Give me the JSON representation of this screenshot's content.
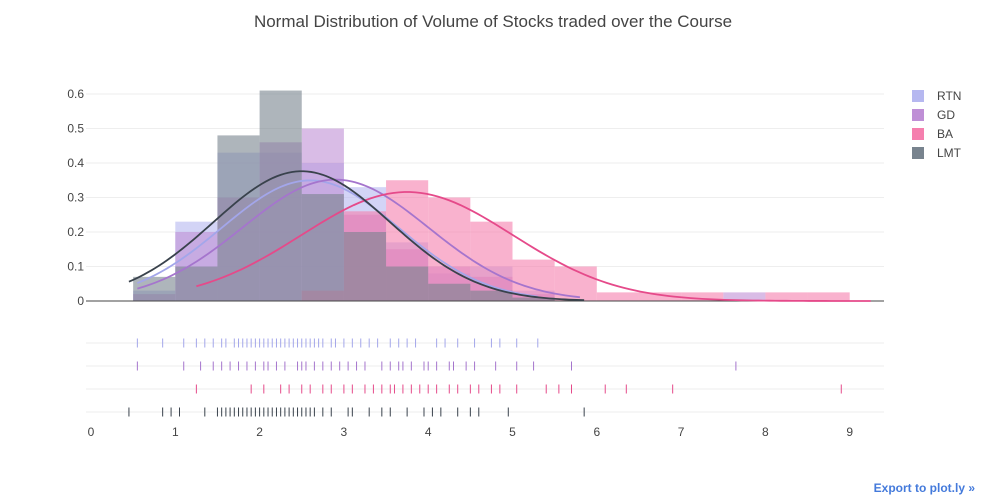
{
  "chart_data": {
    "type": "histogram",
    "title": "Normal Distribution of Volume of Stocks traded over the Course",
    "xlabel": "",
    "ylabel": "",
    "xlim": [
      0,
      9.5
    ],
    "ylim": [
      0,
      0.6
    ],
    "x_ticks": [
      0,
      1,
      2,
      3,
      4,
      5,
      6,
      7,
      8,
      9
    ],
    "y_ticks": [
      0,
      0.1,
      0.2,
      0.3,
      0.4,
      0.5,
      0.6
    ],
    "y_tick_labels": [
      "0",
      "0.1",
      "0.2",
      "0.3",
      "0.4",
      "0.5",
      "0.6"
    ],
    "grid": true,
    "legend_position": "right",
    "series": [
      {
        "name": "RTN",
        "color": "#b6b8f0",
        "bins": [
          {
            "x0": 0.5,
            "x1": 1.0,
            "y": 0.03
          },
          {
            "x0": 1.0,
            "x1": 1.5,
            "y": 0.23
          },
          {
            "x0": 1.5,
            "x1": 2.0,
            "y": 0.43
          },
          {
            "x0": 2.0,
            "x1": 2.5,
            "y": 0.43
          },
          {
            "x0": 2.5,
            "x1": 3.0,
            "y": 0.4
          },
          {
            "x0": 3.0,
            "x1": 3.5,
            "y": 0.33
          },
          {
            "x0": 3.5,
            "x1": 4.0,
            "y": 0.17
          },
          {
            "x0": 4.0,
            "x1": 4.5,
            "y": 0.08
          },
          {
            "x0": 4.5,
            "x1": 5.0,
            "y": 0.1
          },
          {
            "x0": 5.0,
            "x1": 5.5,
            "y": 0.03
          }
        ],
        "curve": {
          "mean": 2.6,
          "sd": 1.05,
          "scale": 0.92,
          "x_range": [
            0.55,
            5.3
          ]
        },
        "rug": [
          0.55,
          0.85,
          1.1,
          1.25,
          1.35,
          1.45,
          1.55,
          1.6,
          1.7,
          1.75,
          1.8,
          1.85,
          1.9,
          1.95,
          2.0,
          2.05,
          2.1,
          2.15,
          2.2,
          2.25,
          2.3,
          2.35,
          2.4,
          2.45,
          2.5,
          2.55,
          2.6,
          2.65,
          2.7,
          2.75,
          2.85,
          2.9,
          3.0,
          3.1,
          3.2,
          3.3,
          3.4,
          3.55,
          3.65,
          3.75,
          3.85,
          4.1,
          4.2,
          4.35,
          4.55,
          4.75,
          4.85,
          5.05,
          5.3
        ]
      },
      {
        "name": "GD",
        "color": "#bf8fd6",
        "bins": [
          {
            "x0": 0.5,
            "x1": 1.0,
            "y": 0.02
          },
          {
            "x0": 1.0,
            "x1": 1.5,
            "y": 0.2
          },
          {
            "x0": 1.5,
            "x1": 2.0,
            "y": 0.3
          },
          {
            "x0": 2.0,
            "x1": 2.5,
            "y": 0.46
          },
          {
            "x0": 2.5,
            "x1": 3.0,
            "y": 0.5
          },
          {
            "x0": 3.0,
            "x1": 3.5,
            "y": 0.25
          },
          {
            "x0": 3.5,
            "x1": 4.0,
            "y": 0.15
          },
          {
            "x0": 4.0,
            "x1": 4.5,
            "y": 0.1
          },
          {
            "x0": 4.5,
            "x1": 5.0,
            "y": 0.07
          },
          {
            "x0": 5.0,
            "x1": 5.5,
            "y": 0.02
          },
          {
            "x0": 7.5,
            "x1": 8.0,
            "y": 0.025
          }
        ],
        "curve": {
          "mean": 2.9,
          "sd": 1.1,
          "scale": 0.97,
          "x_range": [
            0.55,
            5.8
          ]
        },
        "rug": [
          0.55,
          1.1,
          1.3,
          1.45,
          1.55,
          1.65,
          1.75,
          1.85,
          1.95,
          2.05,
          2.1,
          2.2,
          2.3,
          2.45,
          2.5,
          2.55,
          2.65,
          2.75,
          2.85,
          2.95,
          3.05,
          3.15,
          3.25,
          3.45,
          3.55,
          3.65,
          3.7,
          3.8,
          3.95,
          4.0,
          4.1,
          4.25,
          4.3,
          4.45,
          4.55,
          4.8,
          5.05,
          5.25,
          5.7,
          7.65
        ]
      },
      {
        "name": "BA",
        "color": "#f57fae",
        "bins": [
          {
            "x0": 2.5,
            "x1": 3.0,
            "y": 0.03
          },
          {
            "x0": 3.0,
            "x1": 3.5,
            "y": 0.26
          },
          {
            "x0": 3.5,
            "x1": 4.0,
            "y": 0.35
          },
          {
            "x0": 4.0,
            "x1": 4.5,
            "y": 0.3
          },
          {
            "x0": 4.5,
            "x1": 5.0,
            "y": 0.23
          },
          {
            "x0": 5.0,
            "x1": 5.5,
            "y": 0.12
          },
          {
            "x0": 5.5,
            "x1": 6.0,
            "y": 0.1
          },
          {
            "x0": 6.0,
            "x1": 6.5,
            "y": 0.025
          },
          {
            "x0": 6.5,
            "x1": 7.0,
            "y": 0.025
          },
          {
            "x0": 7.0,
            "x1": 7.5,
            "y": 0.025
          },
          {
            "x0": 8.0,
            "x1": 8.5,
            "y": 0.025
          },
          {
            "x0": 8.5,
            "x1": 9.0,
            "y": 0.025
          }
        ],
        "curve": {
          "mean": 3.75,
          "sd": 1.25,
          "scale": 0.99,
          "x_range": [
            1.25,
            9.25
          ]
        },
        "rug": [
          1.25,
          1.9,
          2.05,
          2.25,
          2.35,
          2.5,
          2.6,
          2.75,
          2.85,
          3.0,
          3.1,
          3.25,
          3.35,
          3.45,
          3.55,
          3.6,
          3.7,
          3.8,
          3.9,
          4.0,
          4.1,
          4.25,
          4.35,
          4.5,
          4.6,
          4.75,
          4.85,
          5.05,
          5.4,
          5.55,
          5.7,
          6.1,
          6.35,
          6.9,
          8.9
        ]
      },
      {
        "name": "LMT",
        "color": "#78838e",
        "bins": [
          {
            "x0": 0.5,
            "x1": 1.0,
            "y": 0.07
          },
          {
            "x0": 1.0,
            "x1": 1.5,
            "y": 0.1
          },
          {
            "x0": 1.5,
            "x1": 2.0,
            "y": 0.48
          },
          {
            "x0": 2.0,
            "x1": 2.5,
            "y": 0.61
          },
          {
            "x0": 2.5,
            "x1": 3.0,
            "y": 0.31
          },
          {
            "x0": 3.0,
            "x1": 3.5,
            "y": 0.2
          },
          {
            "x0": 3.5,
            "x1": 4.0,
            "y": 0.1
          },
          {
            "x0": 4.0,
            "x1": 4.5,
            "y": 0.05
          },
          {
            "x0": 4.5,
            "x1": 5.0,
            "y": 0.03
          },
          {
            "x0": 5.0,
            "x1": 5.5,
            "y": 0.01
          }
        ],
        "curve": {
          "mean": 2.5,
          "sd": 1.05,
          "scale": 0.99,
          "x_range": [
            0.45,
            5.85
          ]
        },
        "rug": [
          0.45,
          0.85,
          0.95,
          1.05,
          1.35,
          1.5,
          1.55,
          1.6,
          1.65,
          1.7,
          1.75,
          1.8,
          1.85,
          1.9,
          1.95,
          2.0,
          2.05,
          2.1,
          2.15,
          2.2,
          2.25,
          2.3,
          2.35,
          2.4,
          2.45,
          2.5,
          2.55,
          2.6,
          2.65,
          2.75,
          2.85,
          3.05,
          3.1,
          3.3,
          3.45,
          3.55,
          3.75,
          3.95,
          4.05,
          4.15,
          4.35,
          4.5,
          4.6,
          4.95,
          5.85
        ]
      }
    ]
  },
  "export_link": "Export to plot.ly »"
}
